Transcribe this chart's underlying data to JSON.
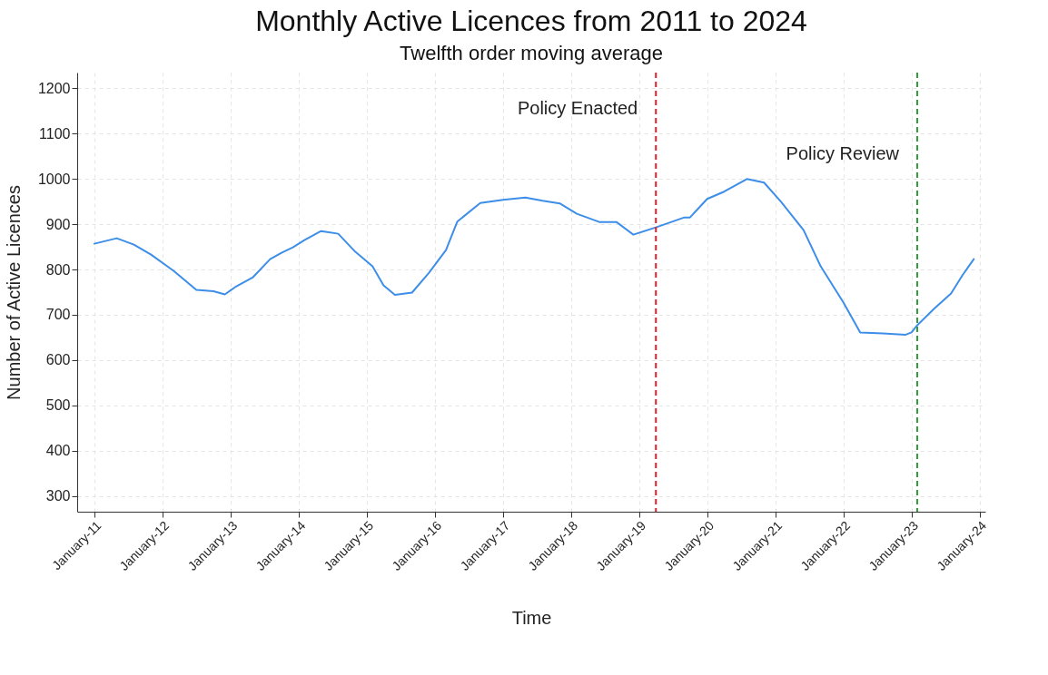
{
  "chart_data": {
    "type": "line",
    "title": "Monthly Active Licences from 2011 to 2024",
    "subtitle": "Twelfth order moving average",
    "xlabel": "Time",
    "ylabel": "Number of Active Licences",
    "x": [
      "2011-01",
      "2011-05",
      "2011-08",
      "2011-11",
      "2012-03",
      "2012-07",
      "2012-10",
      "2012-12",
      "2013-02",
      "2013-05",
      "2013-08",
      "2013-10",
      "2013-12",
      "2014-02",
      "2014-05",
      "2014-08",
      "2014-11",
      "2015-02",
      "2015-04",
      "2015-06",
      "2015-09",
      "2015-12",
      "2016-03",
      "2016-05",
      "2016-09",
      "2017-01",
      "2017-05",
      "2017-08",
      "2017-11",
      "2018-02",
      "2018-06",
      "2018-09",
      "2018-12",
      "2019-04",
      "2019-09",
      "2019-10",
      "2020-01",
      "2020-04",
      "2020-08",
      "2020-11",
      "2021-02",
      "2021-06",
      "2021-09",
      "2022-01",
      "2022-04",
      "2022-08",
      "2022-12",
      "2023-01",
      "2023-02",
      "2023-05",
      "2023-08",
      "2023-10",
      "2023-12"
    ],
    "series": [
      {
        "color": "#3d8ee8",
        "values": [
          857,
          869,
          855,
          833,
          797,
          755,
          752,
          745,
          763,
          783,
          823,
          837,
          849,
          865,
          885,
          879,
          839,
          807,
          765,
          744,
          749,
          793,
          843,
          906,
          947,
          954,
          959,
          952,
          946,
          923,
          905,
          905,
          877,
          893,
          915,
          915,
          956,
          972,
          1000,
          992,
          949,
          887,
          807,
          727,
          661,
          659,
          656,
          661,
          677,
          713,
          747,
          787,
          823
        ]
      }
    ],
    "xlim": [
      "2010-10",
      "2024-02"
    ],
    "ylim": [
      265,
      1235
    ],
    "xticks": [
      {
        "value": "2011-01",
        "label": "January-11"
      },
      {
        "value": "2012-01",
        "label": "January-12"
      },
      {
        "value": "2013-01",
        "label": "January-13"
      },
      {
        "value": "2014-01",
        "label": "January-14"
      },
      {
        "value": "2015-01",
        "label": "January-15"
      },
      {
        "value": "2016-01",
        "label": "January-16"
      },
      {
        "value": "2017-01",
        "label": "January-17"
      },
      {
        "value": "2018-01",
        "label": "January-18"
      },
      {
        "value": "2019-01",
        "label": "January-19"
      },
      {
        "value": "2020-01",
        "label": "January-20"
      },
      {
        "value": "2021-01",
        "label": "January-21"
      },
      {
        "value": "2022-01",
        "label": "January-22"
      },
      {
        "value": "2023-01",
        "label": "January-23"
      },
      {
        "value": "2024-01",
        "label": "January-24"
      }
    ],
    "yticks": [
      300,
      400,
      500,
      600,
      700,
      800,
      900,
      1000,
      1100,
      1200
    ],
    "ref_lines": [
      {
        "axis": "x",
        "value": "2019-04",
        "label": "Policy Enacted",
        "color": "#e0202a",
        "line_style": "dashed"
      },
      {
        "axis": "x",
        "value": "2023-02",
        "label": "Policy Review",
        "color": "#2e9a3a",
        "line_style": "dashed"
      }
    ],
    "grid": true,
    "marker": "none",
    "line_style": "solid"
  }
}
